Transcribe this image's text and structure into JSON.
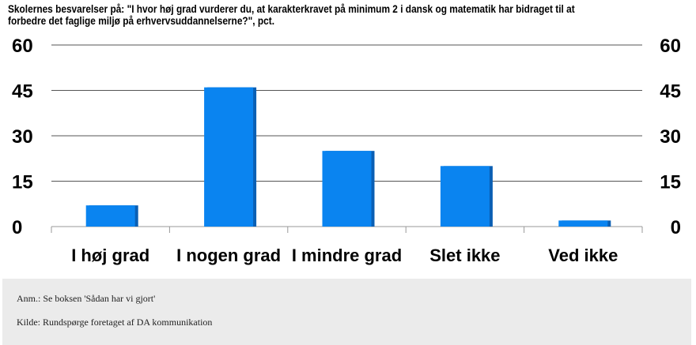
{
  "title": "Skolernes besvarelser på: \"I hvor høj grad vurderer du, at karakterkravet på minimum 2 i dansk og matematik har bidraget til at forbedre det faglige miljø på erhvervsuddannelserne?\", pct.",
  "chart_data": {
    "type": "bar",
    "title": "Skolernes besvarelser på: \"I hvor høj grad vurderer du, at karakterkravet på minimum 2 i dansk og matematik har bidraget til at forbedre det faglige miljø på erhvervsuddannelserne?\", pct.",
    "categories": [
      "I høj grad",
      "I nogen grad",
      "I mindre grad",
      "Slet ikke",
      "Ved ikke"
    ],
    "values": [
      7,
      46,
      25,
      20,
      2
    ],
    "ylim": [
      0,
      60
    ],
    "yticks": [
      0,
      15,
      30,
      45,
      60
    ],
    "ytick_labels": [
      "0",
      "15",
      "30",
      "45",
      "60"
    ],
    "grid": true,
    "bar_color": "#0a84f0",
    "bar_shadow_color": "#0a5fb4",
    "dual_y_axis": true
  },
  "footer": {
    "note": "Anm.: Se boksen 'Sådan har vi gjort'",
    "source": "Kilde: Rundspørge foretaget af DA kommunikation"
  }
}
